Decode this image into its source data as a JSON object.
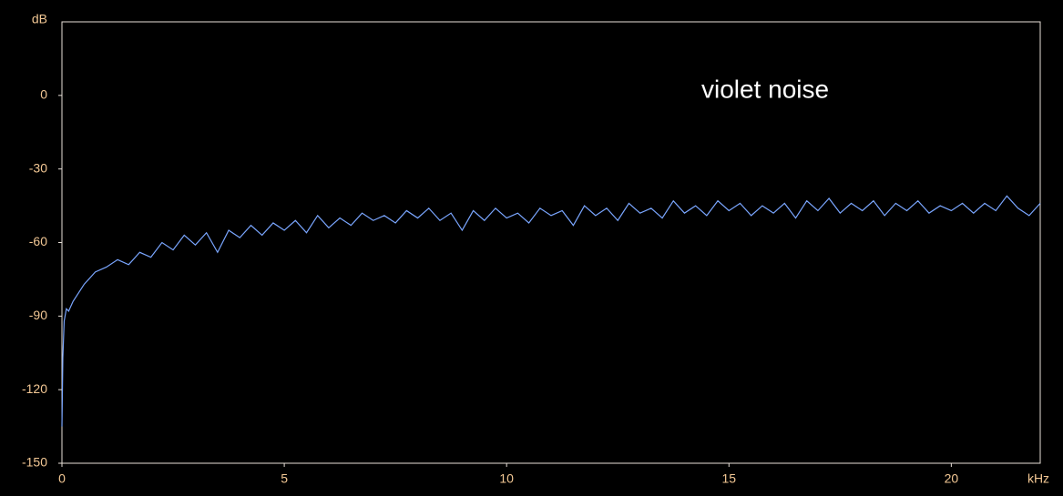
{
  "chart_data": {
    "type": "line",
    "title": "violet noise",
    "y_label": "dB",
    "x_label": "kHz",
    "xlim": [
      0,
      22
    ],
    "xticks": [
      0,
      5,
      10,
      15,
      20
    ],
    "ylim": [
      -150,
      30
    ],
    "yticks": [
      0,
      -30,
      -60,
      -90,
      -120,
      -150
    ],
    "grid": false,
    "series": [
      {
        "color": "#7aa6ff",
        "x": [
          0,
          0.02,
          0.05,
          0.1,
          0.15,
          0.25,
          0.5,
          0.75,
          1,
          1.25,
          1.5,
          1.75,
          2,
          2.25,
          2.5,
          2.75,
          3,
          3.25,
          3.5,
          3.75,
          4,
          4.25,
          4.5,
          4.75,
          5,
          5.25,
          5.5,
          5.75,
          6,
          6.25,
          6.5,
          6.75,
          7,
          7.25,
          7.5,
          7.75,
          8,
          8.25,
          8.5,
          8.75,
          9,
          9.25,
          9.5,
          9.75,
          10,
          10.25,
          10.5,
          10.75,
          11,
          11.25,
          11.5,
          11.75,
          12,
          12.25,
          12.5,
          12.75,
          13,
          13.25,
          13.5,
          13.75,
          14,
          14.25,
          14.5,
          14.75,
          15,
          15.25,
          15.5,
          15.75,
          16,
          16.25,
          16.5,
          16.75,
          17,
          17.25,
          17.5,
          17.75,
          18,
          18.25,
          18.5,
          18.75,
          19,
          19.25,
          19.5,
          19.75,
          20,
          20.25,
          20.5,
          20.75,
          21,
          21.25,
          21.5,
          21.75,
          22
        ],
        "values": [
          -135,
          -107,
          -92,
          -87,
          -88,
          -84,
          -77,
          -72,
          -70,
          -67,
          -69,
          -64,
          -66,
          -60,
          -63,
          -57,
          -61,
          -56,
          -64,
          -55,
          -58,
          -53,
          -57,
          -52,
          -55,
          -51,
          -56,
          -49,
          -54,
          -50,
          -53,
          -48,
          -51,
          -49,
          -52,
          -47,
          -50,
          -46,
          -51,
          -48,
          -55,
          -47,
          -51,
          -46,
          -50,
          -48,
          -52,
          -46,
          -49,
          -47,
          -53,
          -45,
          -49,
          -46,
          -51,
          -44,
          -48,
          -46,
          -50,
          -43,
          -48,
          -45,
          -49,
          -43,
          -47,
          -44,
          -49,
          -45,
          -48,
          -44,
          -50,
          -43,
          -47,
          -42,
          -48,
          -44,
          -47,
          -43,
          -49,
          -44,
          -47,
          -43,
          -48,
          -45,
          -47,
          -44,
          -48,
          -44,
          -47,
          -41,
          -46,
          -49,
          -44
        ]
      }
    ]
  }
}
